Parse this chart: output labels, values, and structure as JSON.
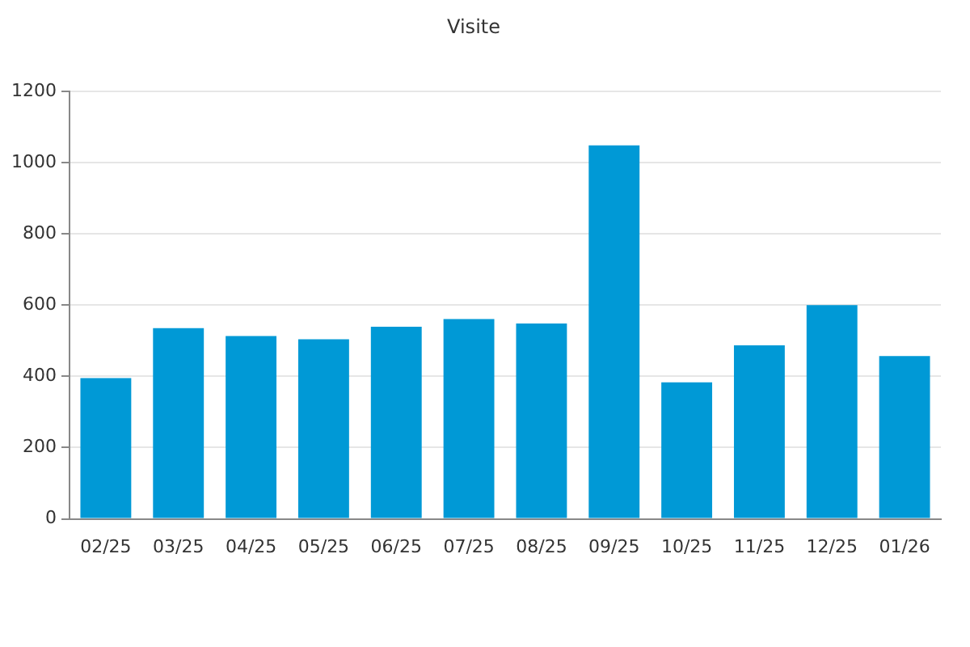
{
  "chart_data": {
    "type": "bar",
    "title": "Visite",
    "categories": [
      "02/25",
      "03/25",
      "04/25",
      "05/25",
      "06/25",
      "07/25",
      "08/25",
      "09/25",
      "10/25",
      "11/25",
      "12/25",
      "01/26"
    ],
    "values": [
      395,
      535,
      513,
      504,
      539,
      561,
      548,
      1048,
      383,
      487,
      600,
      457
    ],
    "color": "#0099d6",
    "ylim": [
      0,
      1200
    ],
    "yticks": [
      0,
      200,
      400,
      600,
      800,
      1000,
      1200
    ],
    "grid": "y"
  }
}
